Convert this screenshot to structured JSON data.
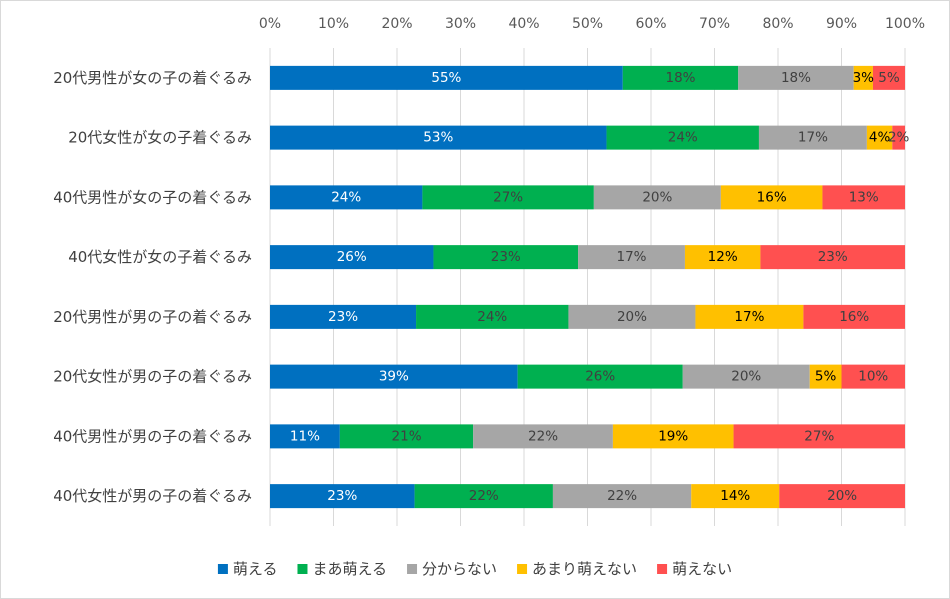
{
  "chart_data": {
    "type": "bar",
    "orientation": "horizontal",
    "stacked": "percent",
    "categories": [
      "20代男性が女の子の着ぐるみ",
      "20代女性が女の子着ぐるみ",
      "40代男性が女の子の着ぐるみ",
      "40代女性が女の子着ぐるみ",
      "20代男性が男の子の着ぐるみ",
      "20代女性が男の子の着ぐるみ",
      "40代男性が男の子の着ぐるみ",
      "40代女性が男の子の着ぐるみ"
    ],
    "series": [
      {
        "name": "萌える",
        "color": "#0070c0",
        "label_color": "#ffffff",
        "values": [
          55,
          53,
          24,
          26,
          23,
          39,
          11,
          23
        ],
        "labels": [
          "55%",
          "53%",
          "24%",
          "26%",
          "23%",
          "39%",
          "11%",
          "23%"
        ]
      },
      {
        "name": "まあ萌える",
        "color": "#00b050",
        "label_color": "#404040",
        "values": [
          18,
          24,
          27,
          23,
          24,
          26,
          21,
          22
        ],
        "labels": [
          "18%",
          "24%",
          "27%",
          "23%",
          "24%",
          "26%",
          "21%",
          "22%"
        ]
      },
      {
        "name": "分からない",
        "color": "#a6a6a6",
        "label_color": "#404040",
        "values": [
          18,
          17,
          20,
          17,
          20,
          20,
          22,
          22
        ],
        "labels": [
          "18%",
          "17%",
          "20%",
          "17%",
          "20%",
          "20%",
          "22%",
          "22%"
        ]
      },
      {
        "name": "あまり萌えない",
        "color": "#ffc000",
        "label_color": "#000000",
        "values": [
          3,
          4,
          16,
          12,
          17,
          5,
          19,
          14
        ],
        "labels": [
          "3%",
          "4%",
          "16%",
          "12%",
          "17%",
          "5%",
          "19%",
          "14%"
        ]
      },
      {
        "name": "萌えない",
        "color": "#ff5050",
        "label_color": "#404040",
        "values": [
          5,
          2,
          13,
          23,
          16,
          10,
          27,
          20
        ],
        "labels": [
          "5%",
          "2%",
          "13%",
          "23%",
          "16%",
          "10%",
          "27%",
          "20%"
        ]
      }
    ],
    "x_ticks": [
      "0%",
      "10%",
      "20%",
      "30%",
      "40%",
      "50%",
      "60%",
      "70%",
      "80%",
      "90%",
      "100%"
    ],
    "xlim": [
      0,
      100
    ],
    "x_axis_position": "top",
    "grid": true,
    "legend_position": "bottom",
    "title": "",
    "xlabel": "",
    "ylabel": ""
  }
}
